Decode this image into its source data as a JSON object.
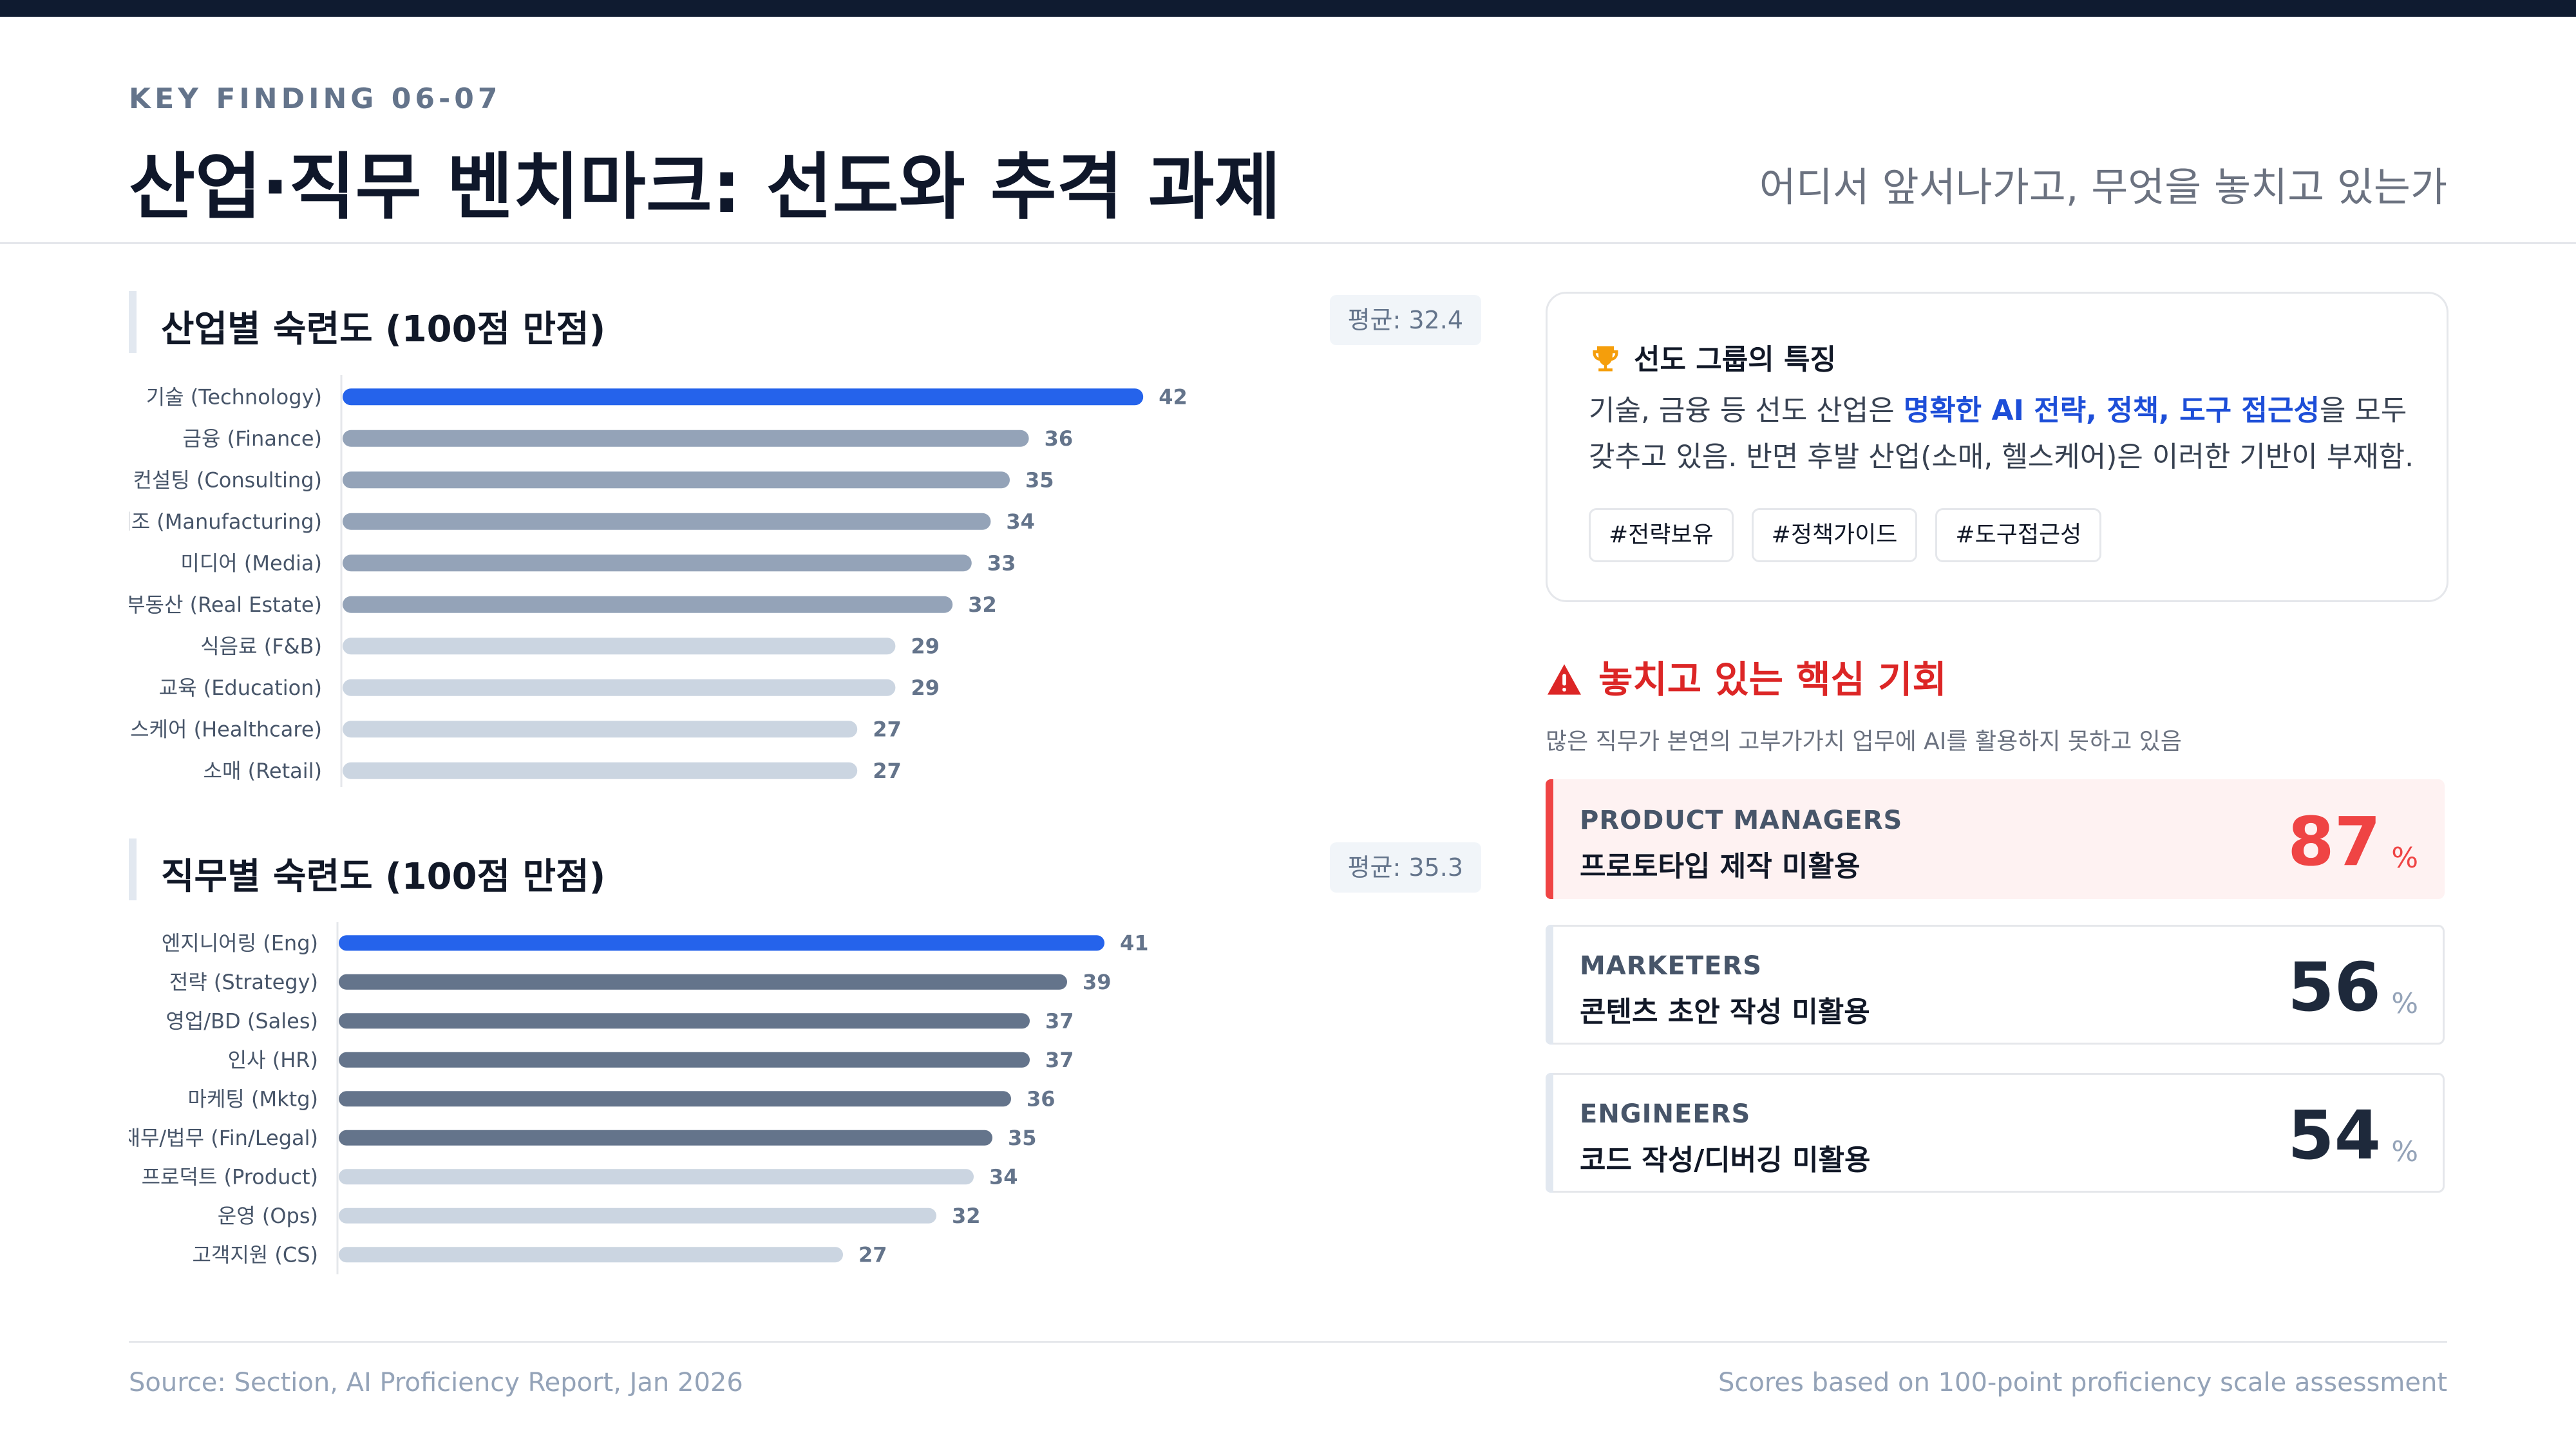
{
  "header": {
    "kicker": "KEY FINDING 06-07",
    "title": "산업·직무 벤치마크: 선도와 추격 과제",
    "subtitle": "어디서 앞서나가고, 무엇을 놓치고 있는가"
  },
  "colors": {
    "leader": "#2563eb",
    "upper": "#94a3b8",
    "upper_role": "#64748b",
    "lower": "#cbd5e1",
    "alert": "#ef4444",
    "highlight": "#1d4ed8"
  },
  "chart_data": [
    {
      "type": "bar",
      "orientation": "horizontal",
      "title": "산업별 숙련도 (100점 만점)",
      "average_label": "평균: 32.4",
      "categories": [
        "기술 (Technology)",
        "금융 (Finance)",
        "컨설팅 (Consulting)",
        "제조 (Manufacturing)",
        "미디어 (Media)",
        "부동산 (Real Estate)",
        "식음료 (F&B)",
        "교육 (Education)",
        "헬스케어 (Healthcare)",
        "소매 (Retail)"
      ],
      "values": [
        42,
        36,
        35,
        34,
        33,
        32,
        29,
        29,
        27,
        27
      ],
      "tiers": [
        "leader",
        "upper",
        "upper",
        "upper",
        "upper",
        "upper",
        "lower",
        "lower",
        "lower",
        "lower"
      ],
      "xlim": [
        0,
        50
      ]
    },
    {
      "type": "bar",
      "orientation": "horizontal",
      "title": "직무별 숙련도 (100점 만점)",
      "average_label": "평균: 35.3",
      "categories": [
        "엔지니어링 (Eng)",
        "전략 (Strategy)",
        "영업/BD (Sales)",
        "인사 (HR)",
        "마케팅 (Mktg)",
        "재무/법무 (Fin/Legal)",
        "프로덕트 (Product)",
        "운영 (Ops)",
        "고객지원 (CS)"
      ],
      "values": [
        41,
        39,
        37,
        37,
        36,
        35,
        34,
        32,
        27
      ],
      "tiers": [
        "leader",
        "upper_role",
        "upper_role",
        "upper_role",
        "upper_role",
        "upper_role",
        "lower",
        "lower",
        "lower"
      ],
      "xlim": [
        0,
        50
      ]
    }
  ],
  "leaders_card": {
    "title": "선도 그룹의 특징",
    "body_pre": "기술, 금융 등 선도 산업은 ",
    "body_highlight": "명확한 AI 전략, 정책, 도구 접근성",
    "body_post": "을 모두 갖추고 있음. 반면 후발 산업(소매, 헬스케어)은 이러한 기반이 부재함.",
    "tags": [
      "#전략보유",
      "#정책가이드",
      "#도구접근성"
    ]
  },
  "missed": {
    "title": "놓치고 있는 핵심 기회",
    "subtitle": "많은 직무가 본연의 고부가가치 업무에 AI를 활용하지 못하고 있음",
    "items": [
      {
        "role": "PRODUCT MANAGERS",
        "desc": "프로토타입 제작 미활용",
        "value": "87",
        "unit": "%"
      },
      {
        "role": "MARKETERS",
        "desc": "콘텐츠 초안 작성 미활용",
        "value": "56",
        "unit": "%"
      },
      {
        "role": "ENGINEERS",
        "desc": "코드 작성/디버깅 미활용",
        "value": "54",
        "unit": "%"
      }
    ]
  },
  "footer": {
    "source": "Source: Section, AI Proficiency Report, Jan 2026",
    "note": "Scores based on 100-point proficiency scale assessment"
  }
}
